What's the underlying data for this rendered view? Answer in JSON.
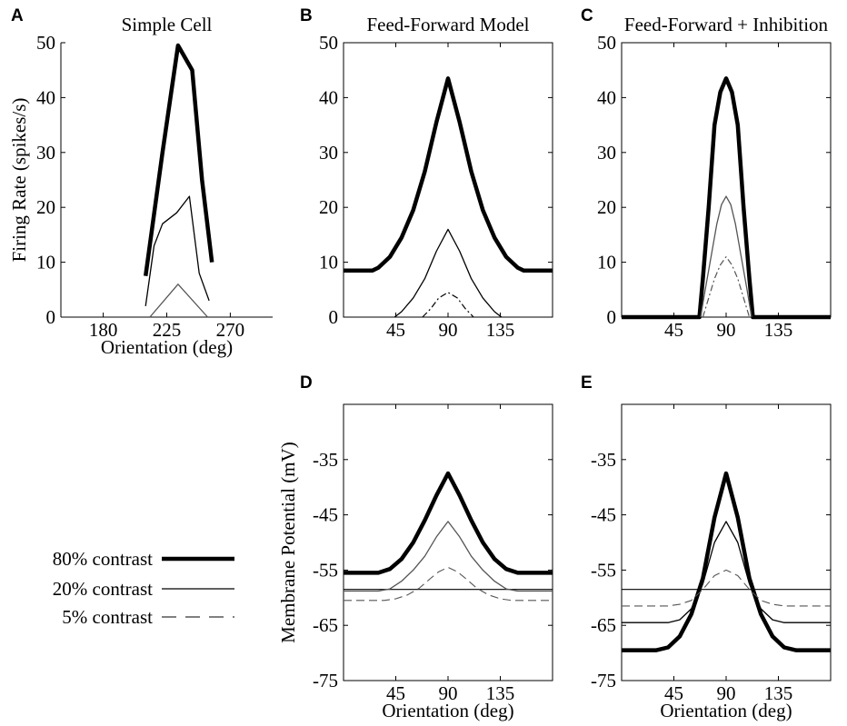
{
  "chart_data": [
    {
      "id": "A",
      "panel_letter": "A",
      "type": "line",
      "title": "Simple Cell",
      "xlabel": "Orientation (deg)",
      "ylabel": "Firing Rate (spikes/s)",
      "xlim": [
        150,
        300
      ],
      "ylim": [
        0,
        50
      ],
      "xticks": [
        180,
        225,
        270
      ],
      "yticks": [
        0,
        10,
        20,
        30,
        40,
        50
      ],
      "series": [
        {
          "name": "80% contrast",
          "style": "thick",
          "color": "#000000",
          "x": [
            210,
            222,
            233,
            243,
            250,
            257
          ],
          "y": [
            7.5,
            30,
            49.5,
            45,
            25,
            10
          ]
        },
        {
          "name": "20% contrast",
          "style": "thin",
          "color": "#000000",
          "x": [
            210,
            216,
            222,
            232,
            241,
            248,
            255
          ],
          "y": [
            2,
            13,
            17,
            19,
            22,
            8,
            3
          ]
        },
        {
          "name": "5% contrast",
          "style": "thin",
          "color": "#555555",
          "x": [
            213,
            233,
            254
          ],
          "y": [
            0,
            6,
            0
          ]
        }
      ]
    },
    {
      "id": "B",
      "panel_letter": "B",
      "type": "line",
      "title": "Feed-Forward Model",
      "xlabel": "",
      "ylabel": "",
      "xlim": [
        0,
        180
      ],
      "ylim": [
        0,
        50
      ],
      "xticks": [
        45,
        90,
        135
      ],
      "yticks": [
        0,
        10,
        20,
        30,
        40,
        50
      ],
      "series": [
        {
          "name": "80% contrast",
          "style": "thick",
          "color": "#000000",
          "x": [
            0,
            25,
            30,
            40,
            50,
            60,
            70,
            80,
            90,
            100,
            110,
            120,
            130,
            140,
            150,
            155,
            180
          ],
          "y": [
            8.5,
            8.5,
            9,
            11,
            14.5,
            19.5,
            26.5,
            35.5,
            43.5,
            35.5,
            26.5,
            19.5,
            14.5,
            11,
            9,
            8.5,
            8.5
          ]
        },
        {
          "name": "20% contrast",
          "style": "thin",
          "color": "#000000",
          "x": [
            44,
            50,
            60,
            70,
            80,
            90,
            100,
            110,
            120,
            130,
            136
          ],
          "y": [
            0,
            1,
            3.5,
            7,
            12,
            16,
            12,
            7,
            3.5,
            1,
            0
          ]
        },
        {
          "name": "5% contrast",
          "style": "dashdot",
          "color": "#000000",
          "x": [
            68,
            75,
            82,
            90,
            98,
            105,
            112
          ],
          "y": [
            0,
            1.5,
            3.5,
            4.5,
            3.5,
            1.5,
            0
          ]
        }
      ]
    },
    {
      "id": "C",
      "panel_letter": "C",
      "type": "line",
      "title": "Feed-Forward + Inhibition",
      "xlabel": "",
      "ylabel": "",
      "xlim": [
        0,
        180
      ],
      "ylim": [
        0,
        50
      ],
      "xticks": [
        45,
        90,
        135
      ],
      "yticks": [
        0,
        10,
        20,
        30,
        40,
        50
      ],
      "series": [
        {
          "name": "80% contrast",
          "style": "thick",
          "color": "#000000",
          "x": [
            0,
            67,
            70,
            75,
            80,
            85,
            90,
            95,
            100,
            105,
            110,
            113,
            180
          ],
          "y": [
            0,
            0,
            7,
            20,
            35,
            41,
            43.5,
            41,
            35,
            20,
            7,
            0,
            0
          ]
        },
        {
          "name": "20% contrast",
          "style": "thin",
          "color": "#555555",
          "x": [
            68,
            72,
            77,
            82,
            86,
            90,
            94,
            98,
            103,
            108,
            112
          ],
          "y": [
            0,
            5,
            11,
            17,
            20.5,
            22,
            20.5,
            17,
            11,
            5,
            0
          ]
        },
        {
          "name": "5% contrast",
          "style": "dashdot",
          "color": "#555555",
          "x": [
            70,
            75,
            80,
            85,
            90,
            95,
            100,
            105,
            110
          ],
          "y": [
            0,
            3.5,
            7,
            9.5,
            11,
            9.5,
            7,
            3.5,
            0
          ]
        }
      ]
    },
    {
      "id": "D",
      "panel_letter": "D",
      "type": "line",
      "title": "",
      "xlabel": "Orientation (deg)",
      "ylabel": "Membrane Potential (mV)",
      "xlim": [
        0,
        180
      ],
      "ylim": [
        -75,
        -25
      ],
      "xticks": [
        45,
        90,
        135
      ],
      "yticks": [
        -75,
        -65,
        -55,
        -45,
        -35
      ],
      "threshold": -58.5,
      "series": [
        {
          "name": "80% contrast",
          "style": "thick",
          "color": "#000000",
          "x": [
            0,
            30,
            40,
            50,
            60,
            70,
            80,
            90,
            100,
            110,
            120,
            130,
            140,
            150,
            180
          ],
          "y": [
            -55.5,
            -55.5,
            -54.8,
            -53,
            -50,
            -46,
            -41.5,
            -37.5,
            -41.5,
            -46,
            -50,
            -53,
            -54.8,
            -55.5,
            -55.5
          ]
        },
        {
          "name": "20% contrast",
          "style": "thin",
          "color": "#555555",
          "x": [
            0,
            30,
            40,
            50,
            60,
            70,
            80,
            90,
            100,
            110,
            120,
            130,
            140,
            150,
            180
          ],
          "y": [
            -58.8,
            -58.8,
            -58.4,
            -57,
            -55,
            -52.5,
            -49,
            -46.2,
            -49,
            -52.5,
            -55,
            -57,
            -58.4,
            -58.8,
            -58.8
          ]
        },
        {
          "name": "5% contrast",
          "style": "dashed",
          "color": "#555555",
          "x": [
            0,
            35,
            45,
            55,
            65,
            75,
            82,
            90,
            98,
            105,
            115,
            125,
            135,
            145,
            180
          ],
          "y": [
            -60.5,
            -60.5,
            -60.2,
            -59.5,
            -58.3,
            -56.5,
            -55.3,
            -54.5,
            -55.3,
            -56.5,
            -58.3,
            -59.5,
            -60.2,
            -60.5,
            -60.5
          ]
        }
      ]
    },
    {
      "id": "E",
      "panel_letter": "E",
      "type": "line",
      "title": "",
      "xlabel": "Orientation (deg)",
      "ylabel": "",
      "xlim": [
        0,
        180
      ],
      "ylim": [
        -75,
        -25
      ],
      "xticks": [
        45,
        90,
        135
      ],
      "yticks": [
        -75,
        -65,
        -55,
        -45,
        -35
      ],
      "threshold": -58.5,
      "series": [
        {
          "name": "80% contrast",
          "style": "thick",
          "color": "#000000",
          "x": [
            0,
            30,
            40,
            50,
            60,
            70,
            80,
            90,
            100,
            110,
            120,
            130,
            140,
            150,
            180
          ],
          "y": [
            -69.5,
            -69.5,
            -69,
            -67,
            -63,
            -56.5,
            -45.5,
            -37.5,
            -45.5,
            -56.5,
            -63,
            -67,
            -69,
            -69.5,
            -69.5
          ]
        },
        {
          "name": "20% contrast",
          "style": "thin",
          "color": "#000000",
          "x": [
            0,
            40,
            50,
            60,
            70,
            80,
            90,
            100,
            110,
            120,
            130,
            140,
            180
          ],
          "y": [
            -64.5,
            -64.5,
            -64,
            -62,
            -57.5,
            -50,
            -46.2,
            -50,
            -57.5,
            -62,
            -64,
            -64.5,
            -64.5
          ]
        },
        {
          "name": "5% contrast",
          "style": "dashed",
          "color": "#555555",
          "x": [
            0,
            40,
            50,
            60,
            70,
            80,
            90,
            100,
            110,
            120,
            130,
            140,
            180
          ],
          "y": [
            -61.5,
            -61.5,
            -61.2,
            -60.5,
            -58.5,
            -56,
            -55,
            -56,
            -58.5,
            -60.5,
            -61.2,
            -61.5,
            -61.5
          ]
        }
      ]
    }
  ],
  "legend": {
    "items": [
      {
        "label": "80% contrast",
        "style": "thick"
      },
      {
        "label": "20% contrast",
        "style": "thin"
      },
      {
        "label": "5% contrast",
        "style": "dashed"
      }
    ]
  }
}
